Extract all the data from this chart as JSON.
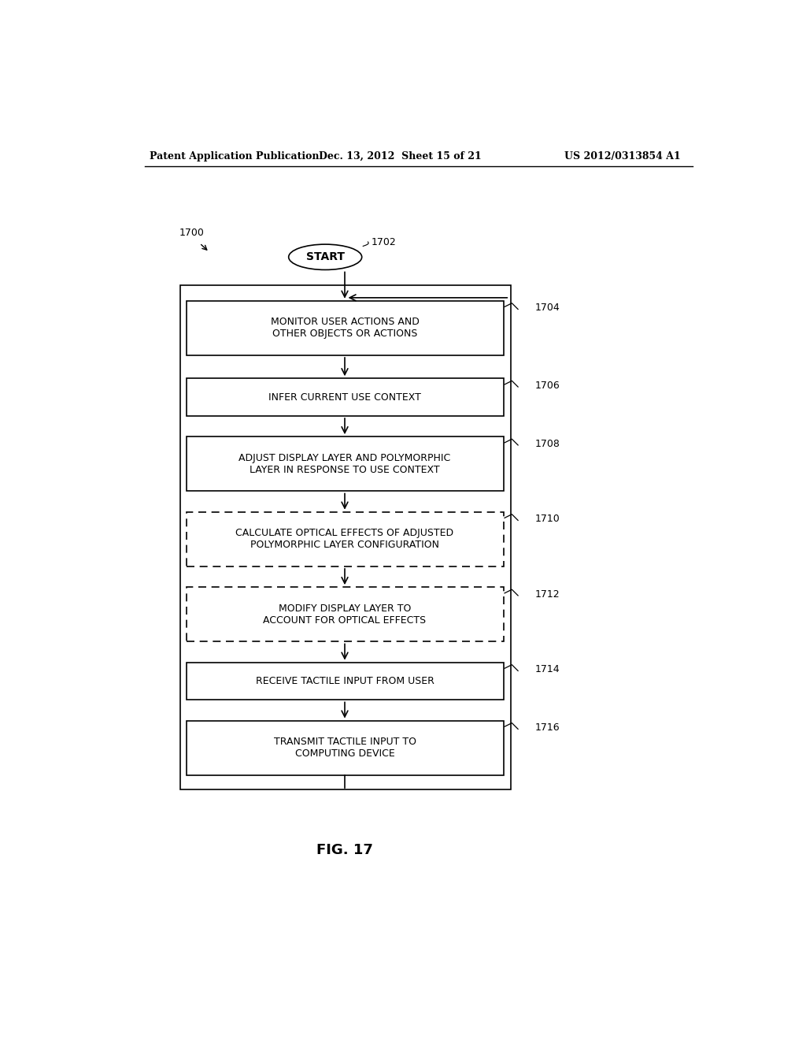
{
  "title_left": "Patent Application Publication",
  "title_mid": "Dec. 13, 2012  Sheet 15 of 21",
  "title_right": "US 2012/0313854 A1",
  "fig_label": "FIG. 17",
  "diagram_label": "1700",
  "start_label": "START",
  "start_ref": "1702",
  "boxes": [
    {
      "label": "MONITOR USER ACTIONS AND\nOTHER OBJECTS OR ACTIONS",
      "ref": "1704",
      "dashed": false
    },
    {
      "label": "INFER CURRENT USE CONTEXT",
      "ref": "1706",
      "dashed": false
    },
    {
      "label": "ADJUST DISPLAY LAYER AND POLYMORPHIC\nLAYER IN RESPONSE TO USE CONTEXT",
      "ref": "1708",
      "dashed": false
    },
    {
      "label": "CALCULATE OPTICAL EFFECTS OF ADJUSTED\nPOLYMORPHIC LAYER CONFIGURATION",
      "ref": "1710",
      "dashed": true
    },
    {
      "label": "MODIFY DISPLAY LAYER TO\nACCOUNT FOR OPTICAL EFFECTS",
      "ref": "1712",
      "dashed": true
    },
    {
      "label": "RECEIVE TACTILE INPUT FROM USER",
      "ref": "1714",
      "dashed": false
    },
    {
      "label": "TRANSMIT TACTILE INPUT TO\nCOMPUTING DEVICE",
      "ref": "1716",
      "dashed": false
    }
  ],
  "bg_color": "#ffffff",
  "box_color": "#000000",
  "text_color": "#000000"
}
